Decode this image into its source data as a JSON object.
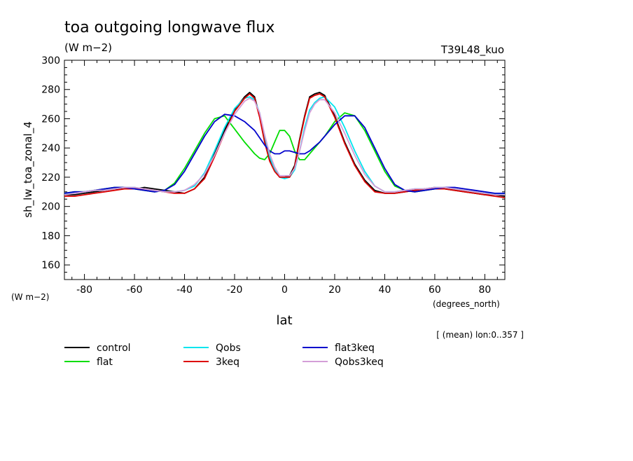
{
  "header": {
    "title": "toa outgoing longwave flux",
    "units": "(W m−2)",
    "experiment": "T39L48_kuo"
  },
  "chart_data": {
    "type": "line",
    "title": "toa outgoing longwave flux",
    "ylabel": "sh_lw_toa_zonal_4",
    "yunits": "(W m−2)",
    "xlabel": "lat",
    "xunits": "(degrees_north)",
    "note": "[ (mean) lon:0..357 ]",
    "xlim": [
      -88,
      88
    ],
    "ylim": [
      150,
      300
    ],
    "xticks": [
      -80,
      -60,
      -40,
      -20,
      0,
      20,
      40,
      60,
      80
    ],
    "yticks": [
      160,
      180,
      200,
      220,
      240,
      260,
      280,
      300
    ],
    "grid": false,
    "legend_position": "bottom",
    "x": [
      -88,
      -84,
      -80,
      -76,
      -72,
      -68,
      -64,
      -60,
      -56,
      -52,
      -48,
      -44,
      -40,
      -36,
      -32,
      -28,
      -24,
      -20,
      -16,
      -14,
      -12,
      -10,
      -8,
      -6,
      -4,
      -2,
      0,
      2,
      4,
      6,
      8,
      10,
      12,
      14,
      16,
      20,
      24,
      28,
      32,
      36,
      40,
      44,
      48,
      52,
      56,
      60,
      64,
      68,
      72,
      76,
      80,
      84,
      88
    ],
    "series": [
      {
        "name": "control",
        "color": "#000000",
        "values": [
          208,
          208,
          209,
          210,
          211,
          212,
          212,
          212,
          213,
          212,
          211,
          210,
          209,
          212,
          220,
          236,
          252,
          266,
          275,
          278,
          275,
          262,
          245,
          232,
          225,
          220,
          220,
          221,
          228,
          246,
          262,
          275,
          277,
          278,
          276,
          262,
          244,
          229,
          218,
          211,
          209,
          209,
          210,
          211,
          212,
          213,
          212,
          211,
          210,
          209,
          208,
          208,
          207
        ]
      },
      {
        "name": "flat",
        "color": "#00dd00",
        "values": [
          209,
          210,
          210,
          211,
          212,
          213,
          213,
          212,
          211,
          210,
          211,
          216,
          226,
          238,
          250,
          260,
          262,
          253,
          244,
          240,
          236,
          233,
          232,
          236,
          244,
          252,
          252,
          248,
          238,
          232,
          232,
          236,
          240,
          244,
          248,
          258,
          264,
          262,
          252,
          238,
          224,
          214,
          211,
          210,
          211,
          212,
          213,
          212,
          211,
          210,
          209,
          209,
          209
        ]
      },
      {
        "name": "Qobs",
        "color": "#00e5ee",
        "values": [
          209,
          209,
          210,
          211,
          211,
          212,
          213,
          213,
          212,
          211,
          210,
          210,
          211,
          214,
          223,
          238,
          254,
          267,
          274,
          275,
          273,
          264,
          248,
          234,
          225,
          220,
          219,
          220,
          225,
          238,
          254,
          266,
          271,
          274,
          275,
          268,
          254,
          238,
          224,
          214,
          210,
          210,
          211,
          212,
          212,
          213,
          213,
          212,
          211,
          210,
          209,
          209,
          208
        ]
      },
      {
        "name": "3keq",
        "color": "#dd0000",
        "values": [
          207,
          207,
          208,
          209,
          210,
          211,
          212,
          212,
          212,
          211,
          210,
          209,
          209,
          212,
          219,
          234,
          250,
          265,
          274,
          277,
          274,
          261,
          244,
          231,
          224,
          220,
          220,
          220,
          227,
          245,
          261,
          274,
          276,
          277,
          275,
          261,
          243,
          228,
          217,
          210,
          209,
          209,
          210,
          211,
          212,
          212,
          212,
          211,
          210,
          209,
          208,
          207,
          206
        ]
      },
      {
        "name": "flat3keq",
        "color": "#0000cc",
        "values": [
          209,
          210,
          210,
          211,
          212,
          213,
          213,
          212,
          211,
          210,
          211,
          215,
          224,
          236,
          248,
          258,
          263,
          262,
          258,
          255,
          252,
          247,
          242,
          238,
          236,
          236,
          238,
          238,
          237,
          236,
          236,
          238,
          241,
          244,
          248,
          256,
          262,
          262,
          254,
          240,
          226,
          215,
          211,
          210,
          211,
          212,
          213,
          213,
          212,
          211,
          210,
          209,
          209
        ]
      },
      {
        "name": "Qobs3keq",
        "color": "#d49ed8",
        "values": [
          208,
          209,
          210,
          211,
          211,
          212,
          213,
          213,
          212,
          211,
          210,
          210,
          211,
          215,
          222,
          235,
          250,
          263,
          272,
          274,
          272,
          264,
          249,
          236,
          227,
          221,
          221,
          221,
          226,
          238,
          252,
          264,
          270,
          273,
          273,
          264,
          250,
          235,
          222,
          214,
          210,
          210,
          211,
          212,
          212,
          213,
          213,
          212,
          211,
          210,
          209,
          208,
          208
        ]
      }
    ]
  }
}
